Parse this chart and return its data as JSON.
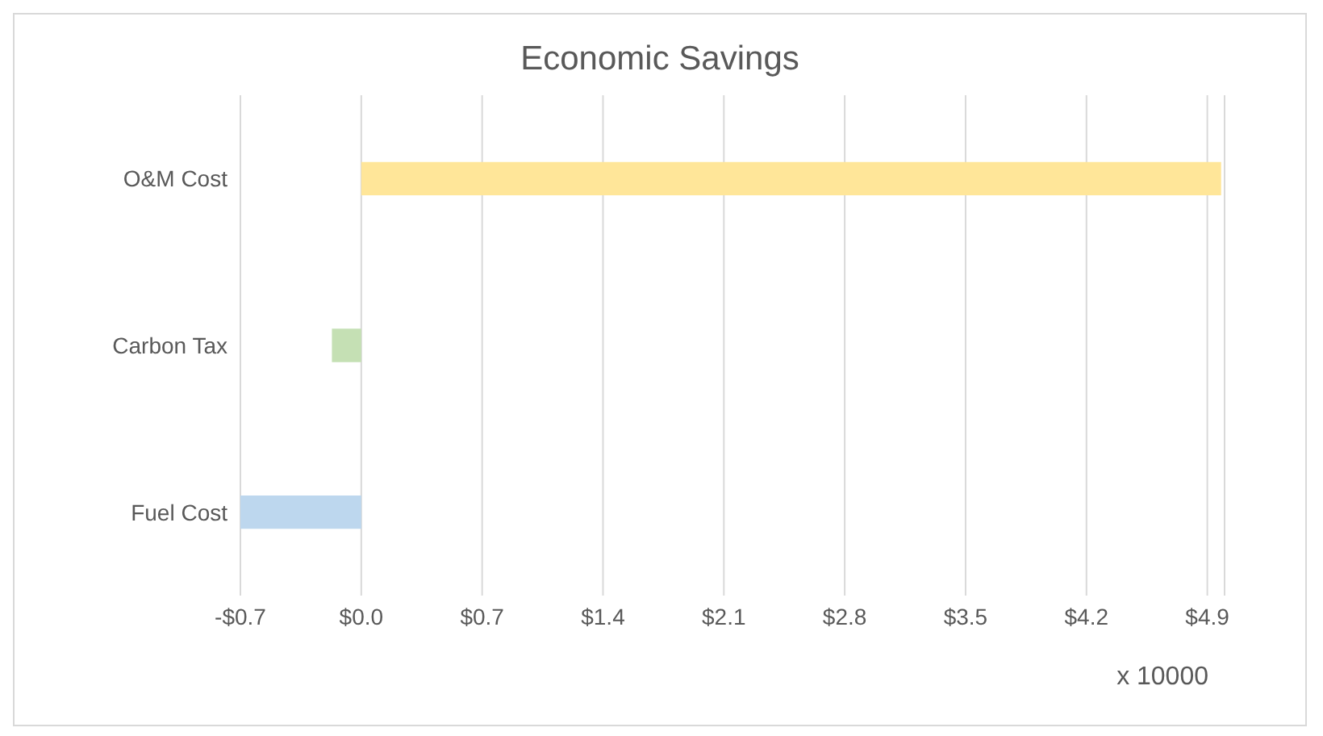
{
  "chart_data": {
    "type": "bar",
    "orientation": "horizontal",
    "title": "Economic Savings",
    "xlabel": "x 10000",
    "categories": [
      "O&M Cost",
      "Carbon Tax",
      "Fuel Cost"
    ],
    "values": [
      4.98,
      -0.17,
      -0.7
    ],
    "colors": [
      "#ffe699",
      "#c5e0b4",
      "#bdd7ee"
    ],
    "xlim": [
      -0.7,
      5.0
    ],
    "xticks": [
      {
        "value": -0.7,
        "label": "-$0.7"
      },
      {
        "value": 0,
        "label": "$0.0"
      },
      {
        "value": 0.7,
        "label": "$0.7"
      },
      {
        "value": 1.4,
        "label": "$1.4"
      },
      {
        "value": 2.1,
        "label": "$2.1"
      },
      {
        "value": 2.8,
        "label": "$2.8"
      },
      {
        "value": 3.5,
        "label": "$3.5"
      },
      {
        "value": 4.2,
        "label": "$4.2"
      },
      {
        "value": 4.9,
        "label": "$4.9"
      }
    ],
    "grid": "x"
  }
}
